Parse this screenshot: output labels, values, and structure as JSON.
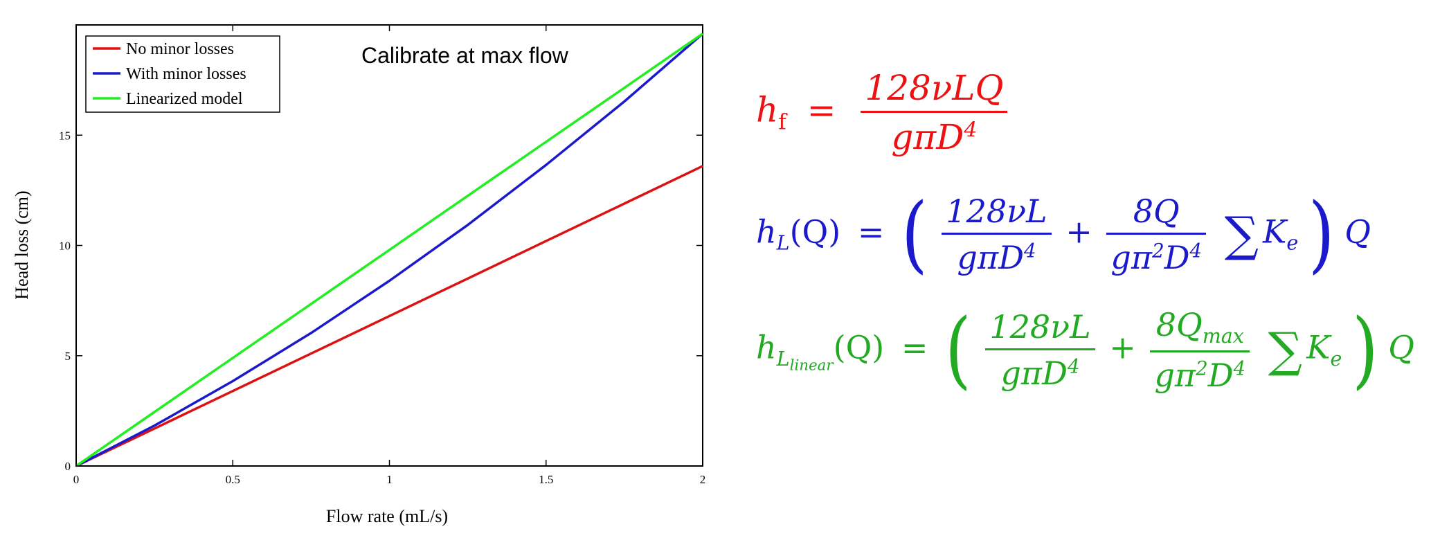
{
  "chart_data": {
    "type": "line",
    "title": "",
    "annotation": "Calibrate at max flow",
    "xlabel": "Flow rate (mL/s)",
    "ylabel": "Head loss (cm)",
    "xlim": [
      0,
      2
    ],
    "ylim": [
      0,
      20
    ],
    "x_ticks": [
      "0",
      "0.5",
      "1",
      "1.5",
      "2"
    ],
    "y_ticks": [
      "0",
      "5",
      "10",
      "15"
    ],
    "legend_position": "top-left",
    "grid": false,
    "x": [
      0,
      0.25,
      0.5,
      0.75,
      1.0,
      1.25,
      1.5,
      1.75,
      2.0
    ],
    "series": [
      {
        "name": "No minor losses",
        "color": "#dd1111",
        "values": [
          0,
          1.7,
          3.4,
          5.1,
          6.8,
          8.5,
          10.2,
          11.9,
          13.6
        ]
      },
      {
        "name": "With minor losses",
        "color": "#1a1acc",
        "values": [
          0,
          1.83,
          3.85,
          6.03,
          8.4,
          10.93,
          13.65,
          16.53,
          19.6
        ]
      },
      {
        "name": "Linearized model",
        "color": "#22ee22",
        "values": [
          0,
          2.45,
          4.9,
          7.35,
          9.8,
          12.25,
          14.7,
          17.15,
          19.6
        ]
      }
    ]
  },
  "equations": {
    "eq1": {
      "color": "#ee1111",
      "lhs": "h",
      "lhs_sub": "f",
      "equals": "=",
      "numerator": "128νLQ",
      "den_a": "gπD",
      "den_pow": "4"
    },
    "eq2": {
      "color": "#1a1acc",
      "lhs": "h",
      "lhs_sub": "L",
      "arg": "(Q)",
      "equals": "=",
      "open": "(",
      "close": ")",
      "f1_num": "128νL",
      "f1_den_a": "gπD",
      "f1_den_pow": "4",
      "plus": "+",
      "f2_num": "8Q",
      "f2_den_a": "gπ",
      "f2_den_pow1": "2",
      "f2_den_b": "D",
      "f2_den_pow2": "4",
      "sum": "∑",
      "k": "K",
      "k_sub": "e",
      "q": "Q"
    },
    "eq3": {
      "color": "#22aa22",
      "lhs": "h",
      "lhs_sub": "L",
      "lhs_subsub": "linear",
      "arg": "(Q)",
      "equals": "=",
      "open": "(",
      "close": ")",
      "f1_num": "128νL",
      "f1_den_a": "gπD",
      "f1_den_pow": "4",
      "plus": "+",
      "f2_num_a": "8Q",
      "f2_num_sub": "max",
      "f2_den_a": "gπ",
      "f2_den_pow1": "2",
      "f2_den_b": "D",
      "f2_den_pow2": "4",
      "sum": "∑",
      "k": "K",
      "k_sub": "e",
      "q": "Q"
    }
  }
}
